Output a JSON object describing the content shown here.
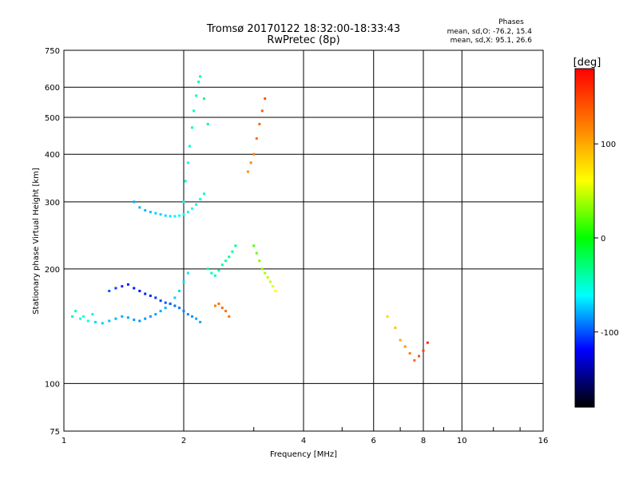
{
  "chart_data": {
    "type": "scatter",
    "title": "Tromsø 20170122 18:32:00-18:33:43",
    "subtitle": "RwPretec (8p)",
    "xlabel": "Frequency [MHz]",
    "ylabel": "Stationary phase Virtual Height [km]",
    "xscale": "log",
    "yscale": "log",
    "xlim": [
      1,
      16
    ],
    "ylim": [
      75,
      750
    ],
    "xticks": [
      1,
      2,
      4,
      6,
      8,
      10,
      16
    ],
    "yticks": [
      75,
      100,
      200,
      300,
      400,
      500,
      600,
      750
    ],
    "grid": true,
    "phases_header": "Phases",
    "phase_stats": [
      "mean, sd,O: -76.2, 15.4",
      "mean, sd,X:  95.1, 26.6"
    ],
    "colorbar": {
      "label": "[deg]",
      "range": [
        -180,
        180
      ],
      "ticks": [
        100,
        0,
        -100
      ],
      "colormap": "rainbow"
    },
    "series": [
      {
        "x": [
          1.05,
          1.07,
          1.1,
          1.12,
          1.15,
          1.18,
          1.2,
          1.25,
          1.3,
          1.35,
          1.4,
          1.45,
          1.5,
          1.55,
          1.6,
          1.65,
          1.7,
          1.75,
          1.8,
          1.85,
          1.9,
          1.95,
          2.0,
          2.05
        ],
        "y": [
          150,
          155,
          148,
          150,
          146,
          152,
          145,
          144,
          146,
          148,
          150,
          149,
          147,
          146,
          148,
          150,
          152,
          155,
          158,
          162,
          168,
          175,
          185,
          195
        ],
        "phase": [
          -40,
          -45,
          -50,
          -55,
          -60,
          -65,
          -70,
          -72,
          -75,
          -78,
          -80,
          -82,
          -84,
          -85,
          -85,
          -84,
          -82,
          -80,
          -78,
          -75,
          -72,
          -70,
          -68,
          -66
        ]
      },
      {
        "x": [
          1.3,
          1.35,
          1.4,
          1.45,
          1.5,
          1.55,
          1.6,
          1.65,
          1.7,
          1.75,
          1.8,
          1.85,
          1.9,
          1.95,
          2.0,
          2.05,
          2.1,
          2.15,
          2.2
        ],
        "y": [
          175,
          178,
          180,
          182,
          178,
          175,
          172,
          170,
          168,
          165,
          163,
          162,
          160,
          158,
          155,
          152,
          150,
          148,
          145
        ],
        "phase": [
          -100,
          -105,
          -110,
          -112,
          -115,
          -115,
          -112,
          -110,
          -108,
          -105,
          -100,
          -98,
          -95,
          -92,
          -90,
          -88,
          -85,
          -82,
          -80
        ]
      },
      {
        "x": [
          1.5,
          1.55,
          1.6,
          1.65,
          1.7,
          1.75,
          1.8,
          1.85,
          1.9,
          1.95,
          2.0,
          2.05,
          2.1,
          2.15,
          2.2,
          2.25,
          2.3,
          2.35,
          2.4,
          2.45,
          2.5,
          2.55,
          2.6,
          2.65,
          2.7
        ],
        "y": [
          300,
          290,
          285,
          282,
          280,
          278,
          276,
          275,
          275,
          276,
          278,
          282,
          288,
          295,
          305,
          315,
          200,
          195,
          192,
          198,
          205,
          210,
          215,
          222,
          230
        ],
        "phase": [
          -80,
          -78,
          -76,
          -74,
          -72,
          -70,
          -68,
          -66,
          -64,
          -62,
          -60,
          -58,
          -56,
          -54,
          -52,
          -50,
          -48,
          -46,
          -44,
          -42,
          -40,
          -38,
          -36,
          -34,
          -32
        ]
      },
      {
        "x": [
          2.0,
          2.02,
          2.05,
          2.07,
          2.1,
          2.12,
          2.15,
          2.18,
          2.2,
          2.25,
          2.3
        ],
        "y": [
          300,
          340,
          380,
          420,
          470,
          520,
          570,
          620,
          640,
          560,
          480
        ],
        "phase": [
          -55,
          -52,
          -50,
          -48,
          -46,
          -44,
          -42,
          -40,
          -38,
          -36,
          -34
        ]
      },
      {
        "x": [
          2.4,
          2.45,
          2.5,
          2.55,
          2.6
        ],
        "y": [
          160,
          162,
          158,
          155,
          150
        ],
        "phase": [
          120,
          125,
          130,
          128,
          126
        ]
      },
      {
        "x": [
          2.9,
          2.95,
          3.0,
          3.05,
          3.1,
          3.15,
          3.2
        ],
        "y": [
          360,
          380,
          400,
          440,
          480,
          520,
          560
        ],
        "phase": [
          110,
          115,
          120,
          125,
          130,
          135,
          140
        ]
      },
      {
        "x": [
          3.0,
          3.05,
          3.1,
          3.15,
          3.2,
          3.25,
          3.3,
          3.35,
          3.4
        ],
        "y": [
          230,
          220,
          210,
          200,
          195,
          190,
          185,
          180,
          175
        ],
        "phase": [
          20,
          25,
          30,
          35,
          40,
          45,
          50,
          55,
          60
        ]
      },
      {
        "x": [
          6.5,
          6.8,
          7.0,
          7.2,
          7.4,
          7.6,
          7.8,
          8.0,
          8.2
        ],
        "y": [
          150,
          140,
          130,
          125,
          120,
          115,
          118,
          122,
          128
        ],
        "phase": [
          80,
          90,
          100,
          110,
          120,
          130,
          140,
          150,
          160
        ]
      }
    ]
  }
}
